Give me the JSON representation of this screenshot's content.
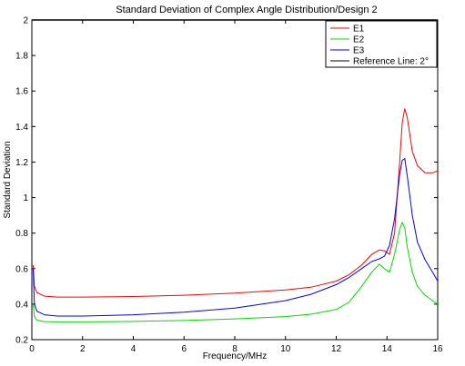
{
  "chart_data": {
    "type": "line",
    "title": "Standard Deviation of Complex Angle Distribution/Design 2",
    "xlabel": "Frequency/MHz",
    "ylabel": "Standard Deviation",
    "xlim": [
      0,
      16
    ],
    "ylim": [
      0.2,
      2
    ],
    "xticks": [
      0,
      2,
      4,
      6,
      8,
      10,
      12,
      14,
      16
    ],
    "yticks": [
      0.2,
      0.4,
      0.6,
      0.8,
      1,
      1.2,
      1.4,
      1.6,
      1.8,
      2
    ],
    "xtick_labels": [
      "0",
      "2",
      "4",
      "6",
      "8",
      "10",
      "12",
      "14",
      "16"
    ],
    "ytick_labels": [
      "0.2",
      "0.4",
      "0.6",
      "0.8",
      "1",
      "1.2",
      "1.4",
      "1.6",
      "1.8",
      "2"
    ],
    "grid": false,
    "legend_position": "top-right",
    "series": [
      {
        "name": "E1",
        "color": "#ff0000",
        "x": [
          0.05,
          0.1,
          0.2,
          0.5,
          1,
          2,
          4,
          6,
          8,
          10,
          11,
          12,
          12.5,
          13,
          13.4,
          13.7,
          13.9,
          14.1,
          14.3,
          14.5,
          14.6,
          14.7,
          14.8,
          15,
          15.2,
          15.5,
          15.8,
          16
        ],
        "y": [
          0.62,
          0.5,
          0.465,
          0.445,
          0.44,
          0.44,
          0.443,
          0.45,
          0.462,
          0.48,
          0.495,
          0.53,
          0.565,
          0.62,
          0.68,
          0.705,
          0.7,
          0.68,
          0.8,
          1.2,
          1.42,
          1.5,
          1.45,
          1.26,
          1.18,
          1.14,
          1.14,
          1.15
        ]
      },
      {
        "name": "E2",
        "color": "#00dd00",
        "x": [
          0.05,
          0.1,
          0.2,
          0.5,
          1,
          2,
          4,
          6,
          8,
          10,
          11,
          12,
          12.5,
          13,
          13.4,
          13.7,
          13.9,
          14.1,
          14.3,
          14.5,
          14.6,
          14.7,
          14.8,
          15,
          15.2,
          15.5,
          15.8,
          16
        ],
        "y": [
          0.4,
          0.33,
          0.31,
          0.302,
          0.3,
          0.3,
          0.303,
          0.308,
          0.317,
          0.33,
          0.343,
          0.37,
          0.41,
          0.5,
          0.58,
          0.625,
          0.6,
          0.58,
          0.68,
          0.82,
          0.86,
          0.83,
          0.72,
          0.58,
          0.5,
          0.45,
          0.42,
          0.4
        ]
      },
      {
        "name": "E3",
        "color": "#0000ff",
        "x": [
          0.05,
          0.1,
          0.2,
          0.5,
          1,
          2,
          4,
          6,
          8,
          10,
          11,
          12,
          12.5,
          13,
          13.4,
          13.7,
          13.9,
          14.1,
          14.3,
          14.5,
          14.6,
          14.7,
          14.8,
          15,
          15.2,
          15.5,
          15.8,
          16
        ],
        "y": [
          0.6,
          0.4,
          0.36,
          0.34,
          0.333,
          0.333,
          0.34,
          0.355,
          0.378,
          0.42,
          0.455,
          0.51,
          0.55,
          0.6,
          0.64,
          0.655,
          0.67,
          0.73,
          0.88,
          1.13,
          1.21,
          1.22,
          1.12,
          0.9,
          0.75,
          0.65,
          0.58,
          0.53
        ]
      },
      {
        "name": "Reference Line: 2°",
        "color": "#000000",
        "x": [
          0,
          16
        ],
        "y": [
          2,
          2
        ]
      }
    ]
  }
}
